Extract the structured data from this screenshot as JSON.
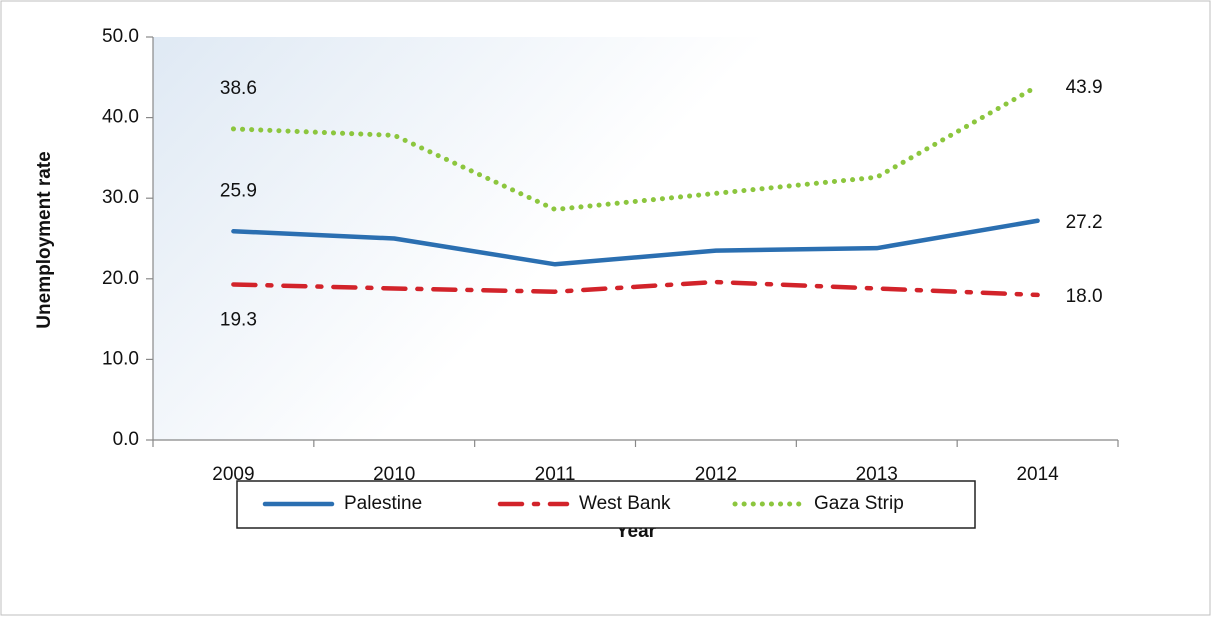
{
  "chart_data": {
    "type": "line",
    "y_label": "Unemployment  rate",
    "x_label": "Year",
    "categories": [
      "2009",
      "2010",
      "2011",
      "2012",
      "2013",
      "2014"
    ],
    "series": [
      {
        "name": "Palestine",
        "color": "#2b6fb1",
        "style": "solid",
        "values": [
          25.9,
          25.0,
          21.8,
          23.5,
          23.8,
          27.2
        ],
        "value_labels": [
          "25.9",
          null,
          null,
          null,
          null,
          "27.2"
        ]
      },
      {
        "name": "West Bank",
        "color": "#d2232a",
        "style": "dashdot",
        "values": [
          19.3,
          18.8,
          18.4,
          19.6,
          18.8,
          18.0
        ],
        "value_labels": [
          "19.3",
          null,
          null,
          null,
          null,
          "18.0"
        ]
      },
      {
        "name": "Gaza Strip",
        "color": "#8cc63e",
        "style": "dotted",
        "values": [
          38.6,
          37.8,
          28.6,
          30.6,
          32.6,
          43.9
        ],
        "value_labels": [
          "38.6",
          null,
          null,
          null,
          null,
          "43.9"
        ]
      }
    ],
    "ylim": [
      0,
      50
    ],
    "yticks": [
      {
        "value": 0,
        "label": "0.0"
      },
      {
        "value": 10,
        "label": "10.0"
      },
      {
        "value": 20,
        "label": "20.0"
      },
      {
        "value": 30,
        "label": "30.0"
      },
      {
        "value": 40,
        "label": "40.0"
      },
      {
        "value": 50,
        "label": "50.0"
      }
    ],
    "legend": "bottom"
  }
}
